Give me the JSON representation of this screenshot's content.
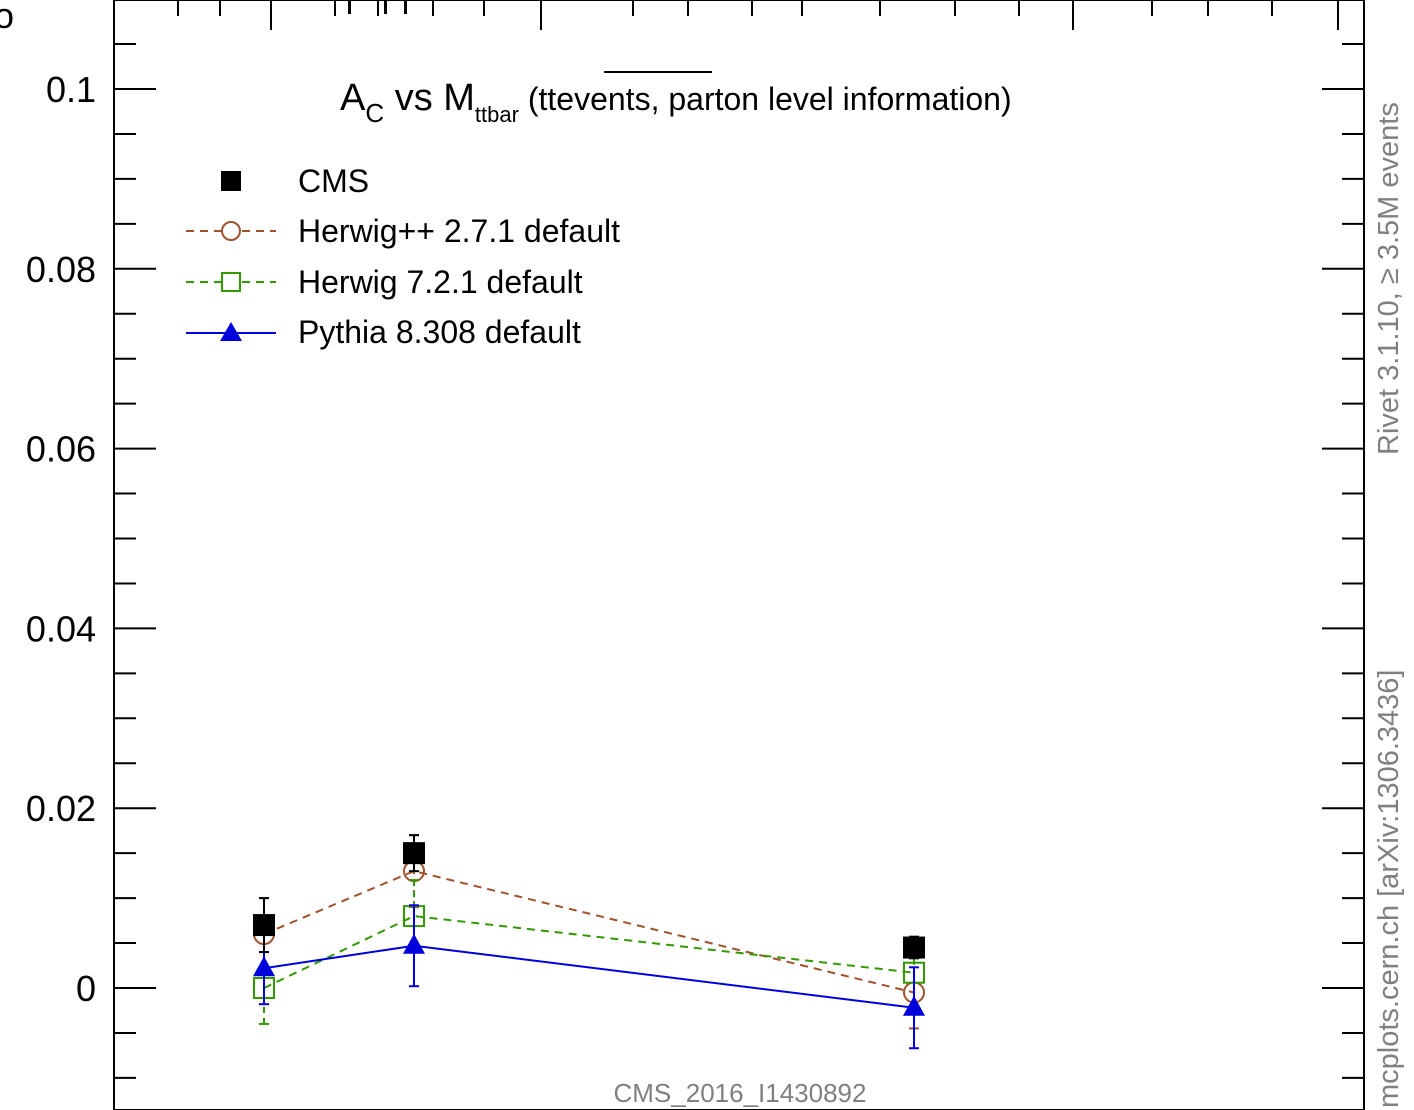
{
  "chart_data": {
    "type": "scatter",
    "title_main": "A",
    "title_sub": "C",
    "title_vs": " vs M",
    "title_sub2": "ttbar",
    "title_paren_open": " (tt",
    "title_overline": "events,",
    "title_rest": " parton level information)",
    "x": [
      0.12,
      0.24,
      0.64
    ],
    "ylim": [
      -0.011,
      0.11
    ],
    "xlim": [
      0,
      1
    ],
    "y_ticks": [
      0,
      0.02,
      0.04,
      0.06,
      0.08,
      0.1
    ],
    "y_tick_labels": [
      "0",
      "0.02",
      "0.04",
      "0.06",
      "0.08",
      "0.1"
    ],
    "series": [
      {
        "name": "CMS",
        "color": "#000000",
        "marker": "filled-square",
        "line": "none",
        "values": [
          0.007,
          0.015,
          0.0045
        ],
        "err": [
          0.003,
          0.002,
          0.0012
        ]
      },
      {
        "name": "Herwig++ 2.7.1 default",
        "color": "#a0522d",
        "marker": "open-circle",
        "line": "dashed",
        "values": [
          0.006,
          0.013,
          -0.0005
        ],
        "err": [
          0.004,
          0.004,
          0.004
        ]
      },
      {
        "name": "Herwig 7.2.1 default",
        "color": "#339900",
        "marker": "open-square",
        "line": "dashed",
        "values": [
          0.0,
          0.008,
          0.0017
        ],
        "err": [
          0.004,
          0.004,
          0.004
        ]
      },
      {
        "name": "Pythia 8.308 default",
        "color": "#0000dd",
        "marker": "filled-triangle",
        "line": "solid",
        "values": [
          0.0022,
          0.0047,
          -0.0022
        ],
        "err": [
          0.004,
          0.0045,
          0.0045
        ]
      }
    ],
    "legend_position": "top-left",
    "analysis_label": "CMS_2016_I1430892",
    "side_label_top": "Rivet 3.1.10, ≥ 3.5M events",
    "side_label_bottom": "mcplots.cern.ch [arXiv:1306.3436]"
  }
}
